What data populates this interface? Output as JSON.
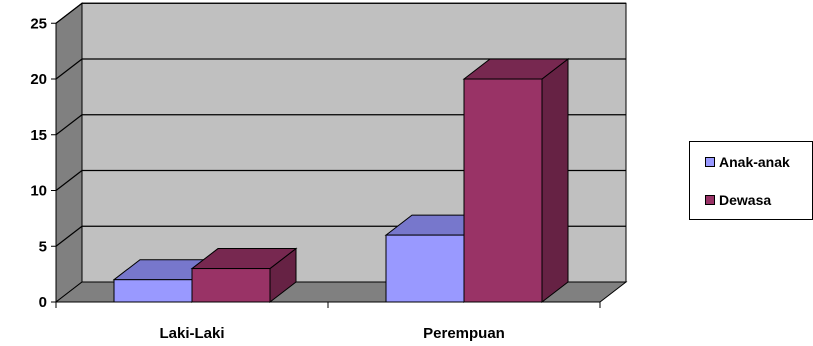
{
  "chart_data": {
    "type": "bar",
    "style": "3d-clustered",
    "categories": [
      "Laki-Laki",
      "Perempuan"
    ],
    "series": [
      {
        "name": "Anak-anak",
        "values": [
          2,
          6
        ],
        "color": "#9999FF",
        "top_color": "#7777CC",
        "side_color": "#6666AA"
      },
      {
        "name": "Dewasa",
        "values": [
          3,
          20
        ],
        "color": "#993366",
        "top_color": "#772850",
        "side_color": "#662244"
      }
    ],
    "ylim": [
      0,
      25
    ],
    "yticks": [
      "0",
      "5",
      "10",
      "15",
      "20",
      "25"
    ],
    "grid": true,
    "legend_position": "right",
    "wall_color": "#C0C0C0",
    "floor_color": "#808080",
    "side_wall_color": "#808080"
  }
}
